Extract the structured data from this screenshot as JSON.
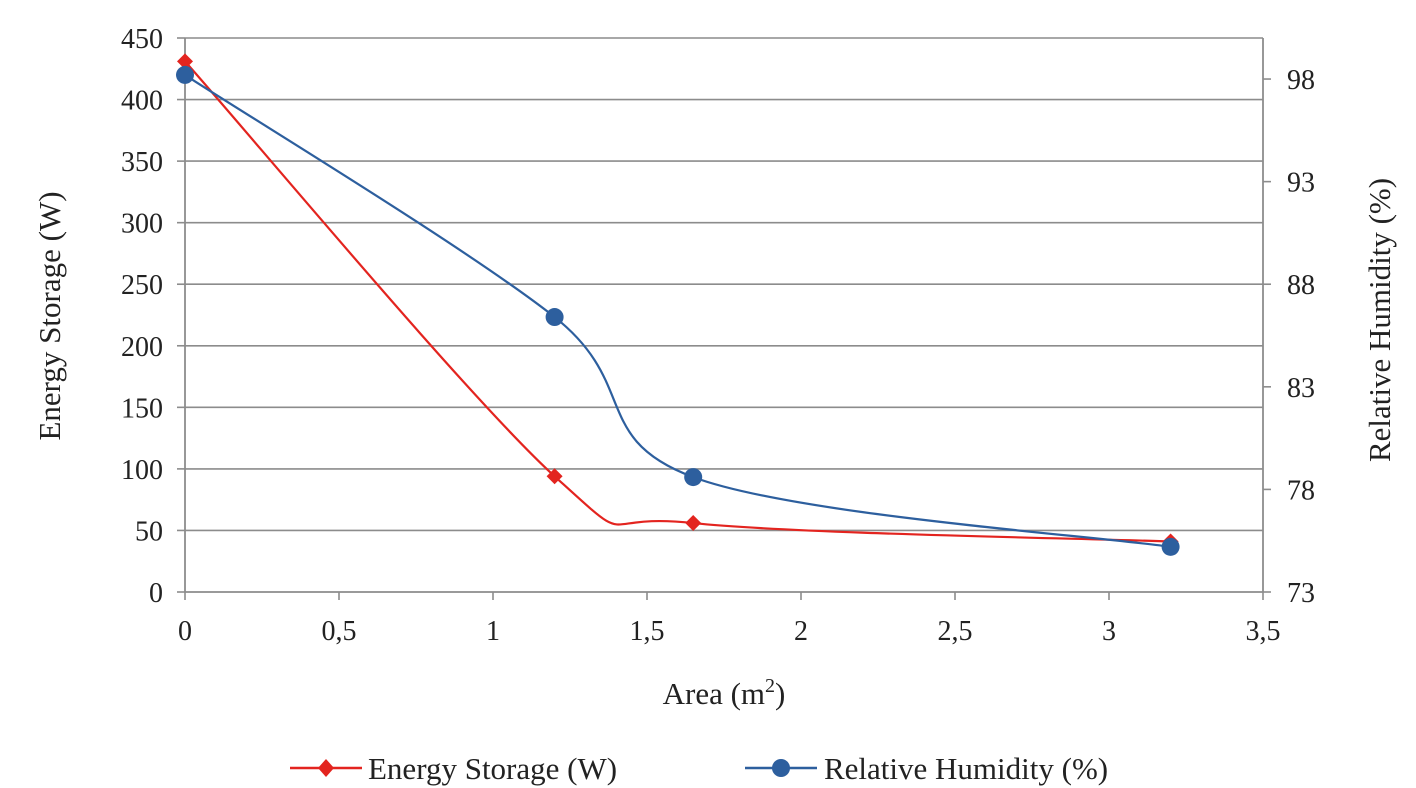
{
  "chart_data": {
    "type": "line",
    "xlabel": "Area (m",
    "xlabel_sup": "2",
    "xlabel_suffix": ")",
    "ylabel_left": "Energy Storage (W)",
    "ylabel_right": "Relative Humidity (%)",
    "xlim": [
      0,
      3.5
    ],
    "ylim_left": [
      0,
      450
    ],
    "ylim_right": [
      73,
      100
    ],
    "x_ticks": [
      "0",
      "0,5",
      "1",
      "1,5",
      "2",
      "2,5",
      "3",
      "3,5"
    ],
    "x_tick_values": [
      0,
      0.5,
      1,
      1.5,
      2,
      2.5,
      3,
      3.5
    ],
    "y_left_ticks": [
      "0",
      "50",
      "100",
      "150",
      "200",
      "250",
      "300",
      "350",
      "400",
      "450"
    ],
    "y_left_tick_values": [
      0,
      50,
      100,
      150,
      200,
      250,
      300,
      350,
      400,
      450
    ],
    "y_right_ticks": [
      "73",
      "78",
      "83",
      "88",
      "93",
      "98"
    ],
    "y_right_tick_values": [
      73,
      78,
      83,
      88,
      93,
      98
    ],
    "grid": true,
    "legend_position": "bottom",
    "series": [
      {
        "name": "Energy Storage (W)",
        "axis": "left",
        "color": "#e3241f",
        "marker": "diamond",
        "x": [
          0,
          1.2,
          1.65,
          3.2
        ],
        "y": [
          431,
          94,
          56,
          41
        ]
      },
      {
        "name": "Relative Humidity (%)",
        "axis": "right",
        "color": "#2d5f9e",
        "marker": "circle",
        "x": [
          0,
          1.2,
          1.65,
          3.2
        ],
        "y": [
          98.2,
          86.4,
          78.6,
          75.2
        ]
      }
    ]
  }
}
